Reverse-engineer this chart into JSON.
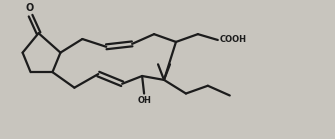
{
  "bg_color": "#1c1c1c",
  "line_color": "#1c1c1c",
  "fig_bg": "#c8c5be",
  "figsize": [
    3.35,
    1.39
  ],
  "dpi": 100,
  "lw": 1.6,
  "cooh_label": "COOH",
  "oh_label": "OH",
  "o_label": "O",
  "xlim": [
    0,
    335
  ],
  "ylim": [
    0,
    139
  ]
}
